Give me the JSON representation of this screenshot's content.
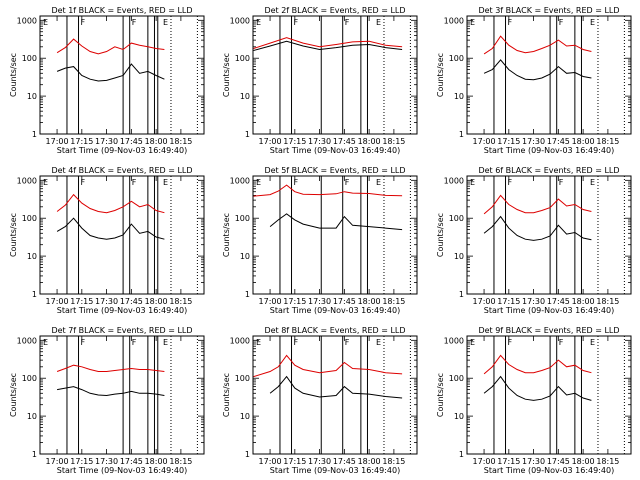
{
  "colors": {
    "events": "#000000",
    "lld": "#dd0000",
    "background": "#ffffff",
    "axes": "#000000"
  },
  "chart_data": [
    {
      "type": "line",
      "panel": "det-1",
      "title": "Det 1f BLACK = Events, RED = LLD",
      "xlabel": "Start Time (09-Nov-03 16:49:40)",
      "ylabel": "Counts/sec",
      "xlim": [
        "16:49:40",
        "18:29:00"
      ],
      "ylim": [
        1,
        1300
      ],
      "yscale": "log",
      "xticks": [
        "17:00",
        "17:15",
        "17:30",
        "17:45",
        "18:00",
        "18:15"
      ],
      "yticks": [
        "1",
        "10",
        "100",
        "1000"
      ],
      "solid_lines": [
        "17:06",
        "17:13",
        "17:40",
        "17:44",
        "17:55",
        "17:59",
        "18:01"
      ],
      "dotted_lines": [
        "18:09",
        "18:25"
      ],
      "flags": [
        "E",
        "F",
        "F",
        "E"
      ],
      "x": [
        "17:00",
        "17:05",
        "17:10",
        "17:15",
        "17:20",
        "17:25",
        "17:30",
        "17:35",
        "17:40",
        "17:45",
        "17:50",
        "17:55",
        "18:00",
        "18:05"
      ],
      "series": [
        {
          "name": "LLD",
          "color": "red",
          "values": [
            140,
            190,
            320,
            210,
            150,
            130,
            150,
            200,
            170,
            250,
            220,
            200,
            180,
            170
          ]
        },
        {
          "name": "Events",
          "color": "black",
          "values": [
            45,
            55,
            60,
            35,
            28,
            25,
            26,
            30,
            35,
            70,
            40,
            45,
            35,
            28
          ]
        }
      ]
    },
    {
      "type": "line",
      "panel": "det-2",
      "title": "Det 2f BLACK = Events, RED = LLD",
      "xlabel": "Start Time (09-Nov-03 16:49:40)",
      "ylabel": "Counts/sec",
      "xlim": [
        "16:49:40",
        "18:29:00"
      ],
      "ylim": [
        1,
        1300
      ],
      "yscale": "log",
      "xticks": [
        "17:00",
        "17:15",
        "17:30",
        "17:45",
        "18:00",
        "18:15"
      ],
      "yticks": [
        "1",
        "10",
        "100",
        "1000"
      ],
      "solid_lines": [
        "17:06",
        "17:13",
        "17:31",
        "17:44",
        "17:55",
        "17:59"
      ],
      "dotted_lines": [
        "18:09",
        "18:25"
      ],
      "flags": [
        "E",
        "F",
        "F",
        "E"
      ],
      "x": [
        "16:50",
        "17:00",
        "17:10",
        "17:20",
        "17:30",
        "17:40",
        "17:50",
        "18:00",
        "18:10",
        "18:20"
      ],
      "series": [
        {
          "name": "LLD",
          "color": "red",
          "values": [
            180,
            250,
            350,
            250,
            200,
            230,
            270,
            280,
            220,
            200
          ]
        },
        {
          "name": "Events",
          "color": "black",
          "values": [
            160,
            210,
            280,
            210,
            170,
            190,
            220,
            230,
            190,
            170
          ]
        }
      ]
    },
    {
      "type": "line",
      "panel": "det-3",
      "title": "Det 3f BLACK = Events, RED = LLD",
      "xlabel": "Start Time (09-Nov-03 16:49:40)",
      "ylabel": "Counts/sec",
      "xlim": [
        "16:49:40",
        "18:29:00"
      ],
      "ylim": [
        1,
        1300
      ],
      "yscale": "log",
      "xticks": [
        "17:00",
        "17:15",
        "17:30",
        "17:45",
        "18:00",
        "18:15"
      ],
      "yticks": [
        "1",
        "10",
        "100",
        "1000"
      ],
      "solid_lines": [
        "17:06",
        "17:13",
        "17:40",
        "17:44",
        "17:55",
        "17:59"
      ],
      "dotted_lines": [
        "18:09",
        "18:25"
      ],
      "flags": [
        "E",
        "F",
        "F",
        "E"
      ],
      "x": [
        "17:00",
        "17:05",
        "17:10",
        "17:15",
        "17:20",
        "17:25",
        "17:30",
        "17:35",
        "17:40",
        "17:45",
        "17:50",
        "17:55",
        "18:00",
        "18:05"
      ],
      "series": [
        {
          "name": "LLD",
          "color": "red",
          "values": [
            130,
            180,
            380,
            220,
            160,
            140,
            150,
            180,
            220,
            300,
            210,
            220,
            170,
            150
          ]
        },
        {
          "name": "Events",
          "color": "black",
          "values": [
            40,
            50,
            90,
            50,
            35,
            28,
            27,
            30,
            38,
            60,
            40,
            42,
            33,
            30
          ]
        }
      ]
    },
    {
      "type": "line",
      "panel": "det-4",
      "title": "Det 4f BLACK = Events, RED = LLD",
      "xlabel": "Start Time (09-Nov-03 16:49:40)",
      "ylabel": "Counts/sec",
      "xlim": [
        "16:49:40",
        "18:29:00"
      ],
      "ylim": [
        1,
        1300
      ],
      "yscale": "log",
      "xticks": [
        "17:00",
        "17:15",
        "17:30",
        "17:45",
        "18:00",
        "18:15"
      ],
      "yticks": [
        "1",
        "10",
        "100",
        "1000"
      ],
      "solid_lines": [
        "17:06",
        "17:13",
        "17:40",
        "17:44",
        "17:55",
        "17:59",
        "18:01"
      ],
      "dotted_lines": [
        "18:09",
        "18:25"
      ],
      "flags": [
        "E",
        "F",
        "F",
        "E"
      ],
      "x": [
        "17:00",
        "17:05",
        "17:10",
        "17:15",
        "17:20",
        "17:25",
        "17:30",
        "17:35",
        "17:40",
        "17:45",
        "17:50",
        "17:55",
        "18:00",
        "18:05"
      ],
      "series": [
        {
          "name": "LLD",
          "color": "red",
          "values": [
            150,
            220,
            420,
            250,
            180,
            150,
            140,
            160,
            200,
            280,
            200,
            230,
            160,
            140
          ]
        },
        {
          "name": "Events",
          "color": "black",
          "values": [
            45,
            60,
            100,
            55,
            35,
            30,
            28,
            30,
            36,
            70,
            40,
            45,
            32,
            28
          ]
        }
      ]
    },
    {
      "type": "line",
      "panel": "det-5",
      "title": "Det 5f BLACK = Events, RED = LLD",
      "xlabel": "Start Time (09-Nov-03 16:49:40)",
      "ylabel": "Counts/sec",
      "xlim": [
        "16:49:40",
        "18:29:00"
      ],
      "ylim": [
        1,
        1300
      ],
      "yscale": "log",
      "xticks": [
        "17:00",
        "17:15",
        "17:30",
        "17:45",
        "18:00",
        "18:15"
      ],
      "yticks": [
        "1",
        "10",
        "100",
        "1000"
      ],
      "solid_lines": [
        "17:06",
        "17:13",
        "17:31",
        "17:44",
        "17:55",
        "17:59"
      ],
      "dotted_lines": [
        "18:09",
        "18:25"
      ],
      "flags": [
        "E",
        "F",
        "F",
        "E"
      ],
      "x": [
        "16:50",
        "17:00",
        "17:05",
        "17:10",
        "17:15",
        "17:20",
        "17:30",
        "17:40",
        "17:45",
        "17:50",
        "18:00",
        "18:10",
        "18:20"
      ],
      "series": [
        {
          "name": "LLD",
          "color": "red",
          "values": [
            380,
            420,
            520,
            750,
            500,
            430,
            420,
            440,
            500,
            460,
            450,
            400,
            390
          ]
        },
        {
          "name": "Events",
          "color": "black",
          "values": [
            null,
            60,
            90,
            130,
            90,
            70,
            55,
            55,
            110,
            65,
            60,
            55,
            50
          ]
        }
      ]
    },
    {
      "type": "line",
      "panel": "det-6",
      "title": "Det 6f BLACK = Events, RED = LLD",
      "xlabel": "Start Time (09-Nov-03 16:49:40)",
      "ylabel": "Counts/sec",
      "xlim": [
        "16:49:40",
        "18:29:00"
      ],
      "ylim": [
        1,
        1300
      ],
      "yscale": "log",
      "xticks": [
        "17:00",
        "17:15",
        "17:30",
        "17:45",
        "18:00",
        "18:15"
      ],
      "yticks": [
        "1",
        "10",
        "100",
        "1000"
      ],
      "solid_lines": [
        "17:06",
        "17:13",
        "17:40",
        "17:44",
        "17:55",
        "17:59"
      ],
      "dotted_lines": [
        "18:09",
        "18:25"
      ],
      "flags": [
        "E",
        "F",
        "F",
        "E"
      ],
      "x": [
        "17:00",
        "17:05",
        "17:10",
        "17:15",
        "17:20",
        "17:25",
        "17:30",
        "17:35",
        "17:40",
        "17:45",
        "17:50",
        "17:55",
        "18:00",
        "18:05"
      ],
      "series": [
        {
          "name": "LLD",
          "color": "red",
          "values": [
            130,
            200,
            400,
            230,
            170,
            140,
            140,
            160,
            190,
            320,
            210,
            230,
            170,
            150
          ]
        },
        {
          "name": "Events",
          "color": "black",
          "values": [
            40,
            60,
            110,
            55,
            35,
            28,
            26,
            28,
            34,
            65,
            38,
            42,
            30,
            27
          ]
        }
      ]
    },
    {
      "type": "line",
      "panel": "det-7",
      "title": "Det 7f BLACK = Events, RED = LLD",
      "xlabel": "Start Time (09-Nov-03 16:49:40)",
      "ylabel": "Counts/sec",
      "xlim": [
        "16:49:40",
        "18:29:00"
      ],
      "ylim": [
        1,
        1300
      ],
      "yscale": "log",
      "xticks": [
        "17:00",
        "17:15",
        "17:30",
        "17:45",
        "18:00",
        "18:15"
      ],
      "yticks": [
        "1",
        "10",
        "100",
        "1000"
      ],
      "solid_lines": [
        "17:06",
        "17:13",
        "17:40",
        "17:44",
        "17:55",
        "17:59",
        "18:01"
      ],
      "dotted_lines": [
        "18:09",
        "18:25"
      ],
      "flags": [
        "E",
        "F",
        "F",
        "E"
      ],
      "x": [
        "17:00",
        "17:05",
        "17:10",
        "17:15",
        "17:20",
        "17:25",
        "17:30",
        "17:35",
        "17:40",
        "17:45",
        "17:50",
        "17:55",
        "18:00",
        "18:05"
      ],
      "series": [
        {
          "name": "LLD",
          "color": "red",
          "values": [
            150,
            180,
            220,
            200,
            170,
            150,
            150,
            160,
            170,
            180,
            170,
            170,
            160,
            150
          ]
        },
        {
          "name": "Events",
          "color": "black",
          "values": [
            50,
            55,
            60,
            50,
            40,
            36,
            35,
            38,
            40,
            45,
            40,
            40,
            38,
            35
          ]
        }
      ]
    },
    {
      "type": "line",
      "panel": "det-8",
      "title": "Det 8f BLACK = Events, RED = LLD",
      "xlabel": "Start Time (09-Nov-03 16:49:40)",
      "ylabel": "Counts/sec",
      "xlim": [
        "16:49:40",
        "18:29:00"
      ],
      "ylim": [
        1,
        1300
      ],
      "yscale": "log",
      "xticks": [
        "17:00",
        "17:15",
        "17:30",
        "17:45",
        "18:00",
        "18:15"
      ],
      "yticks": [
        "1",
        "10",
        "100",
        "1000"
      ],
      "solid_lines": [
        "17:06",
        "17:13",
        "17:31",
        "17:44",
        "17:55",
        "17:59"
      ],
      "dotted_lines": [
        "18:09",
        "18:25"
      ],
      "flags": [
        "E",
        "F",
        "F",
        "E"
      ],
      "x": [
        "16:50",
        "17:00",
        "17:05",
        "17:10",
        "17:15",
        "17:20",
        "17:30",
        "17:40",
        "17:45",
        "17:50",
        "18:00",
        "18:10",
        "18:20"
      ],
      "series": [
        {
          "name": "LLD",
          "color": "red",
          "values": [
            110,
            150,
            200,
            400,
            220,
            170,
            140,
            160,
            260,
            180,
            170,
            140,
            130
          ]
        },
        {
          "name": "Events",
          "color": "black",
          "values": [
            null,
            40,
            60,
            110,
            55,
            40,
            32,
            35,
            60,
            40,
            38,
            33,
            30
          ]
        }
      ]
    },
    {
      "type": "line",
      "panel": "det-9",
      "title": "Det 9f BLACK = Events, RED = LLD",
      "xlabel": "Start Time (09-Nov-03 16:49:40)",
      "ylabel": "Counts/sec",
      "xlim": [
        "16:49:40",
        "18:29:00"
      ],
      "ylim": [
        1,
        1300
      ],
      "yscale": "log",
      "xticks": [
        "17:00",
        "17:15",
        "17:30",
        "17:45",
        "18:00",
        "18:15"
      ],
      "yticks": [
        "1",
        "10",
        "100",
        "1000"
      ],
      "solid_lines": [
        "17:06",
        "17:13",
        "17:40",
        "17:44",
        "17:55",
        "17:59"
      ],
      "dotted_lines": [
        "18:09",
        "18:25"
      ],
      "flags": [
        "E",
        "F",
        "F",
        "E"
      ],
      "x": [
        "17:00",
        "17:05",
        "17:10",
        "17:15",
        "17:20",
        "17:25",
        "17:30",
        "17:35",
        "17:40",
        "17:45",
        "17:50",
        "17:55",
        "18:00",
        "18:05"
      ],
      "series": [
        {
          "name": "LLD",
          "color": "red",
          "values": [
            130,
            200,
            400,
            230,
            170,
            140,
            140,
            160,
            190,
            300,
            200,
            220,
            160,
            140
          ]
        },
        {
          "name": "Events",
          "color": "black",
          "values": [
            40,
            60,
            110,
            55,
            35,
            28,
            26,
            28,
            34,
            60,
            36,
            40,
            30,
            26
          ]
        }
      ]
    }
  ]
}
